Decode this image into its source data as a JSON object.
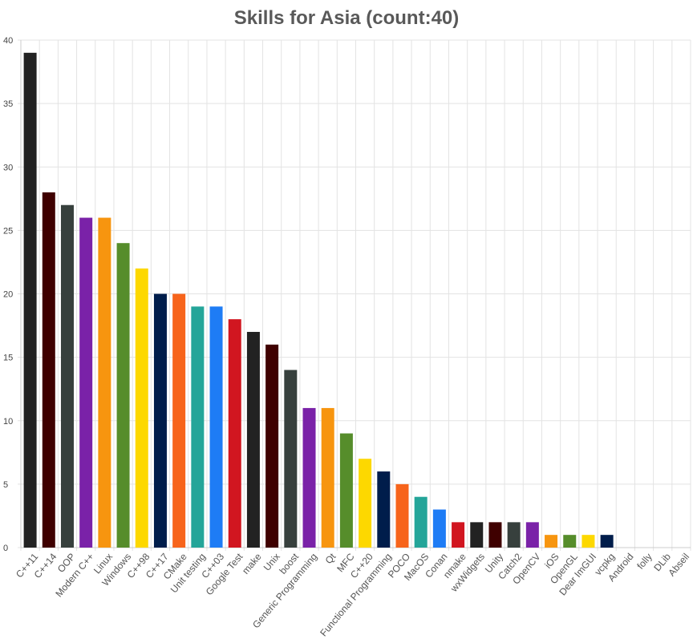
{
  "chart_data": {
    "type": "bar",
    "title": "Skills for Asia (count:40)",
    "xlabel": "",
    "ylabel": "",
    "ylim": [
      0,
      40
    ],
    "yticks": [
      "0",
      "5",
      "10",
      "15",
      "20",
      "25",
      "30",
      "35",
      "40"
    ],
    "grid": true,
    "legend": "none",
    "categories": [
      "C++11",
      "C++14",
      "OOP",
      "Modern C++",
      "Linux",
      "Windows",
      "C++98",
      "C++17",
      "CMake",
      "Unit testing",
      "C++03",
      "Google Test",
      "make",
      "Unix",
      "boost",
      "Generic Programming",
      "Qt",
      "MFC",
      "C++20",
      "Functional Programming",
      "POCO",
      "MacOS",
      "Conan",
      "nmake",
      "wxWidgets",
      "Unity",
      "Catch2",
      "OpenCV",
      "iOS",
      "OpenGL",
      "Dear ImGUI",
      "vcpkg",
      "Android",
      "folly",
      "DLib",
      "Abseil"
    ],
    "values": [
      39,
      28,
      27,
      26,
      26,
      24,
      22,
      20,
      20,
      19,
      19,
      18,
      17,
      16,
      14,
      11,
      11,
      9,
      7,
      6,
      5,
      4,
      3,
      2,
      2,
      2,
      2,
      2,
      1,
      1,
      1,
      1,
      0,
      0,
      0,
      0
    ],
    "colors": [
      "#222222",
      "#3f0000",
      "#37403d",
      "#7a22a8",
      "#f7950f",
      "#568d2b",
      "#fdd800",
      "#001d4b",
      "#f7641b",
      "#24a599",
      "#1e7cf5",
      "#d11620"
    ]
  }
}
